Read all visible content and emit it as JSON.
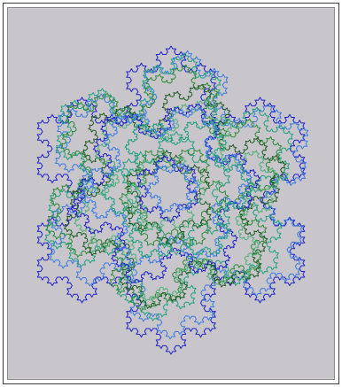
{
  "artwork": {
    "icon": "fractal-snowflake-image",
    "background_color": "#c8c6cb",
    "palette": [
      "#2020c8",
      "#3c7be0",
      "#22a080",
      "#2f8a3a",
      "#1f5a22",
      "#4fb07a"
    ],
    "layers": 9,
    "curve_order": 4
  }
}
